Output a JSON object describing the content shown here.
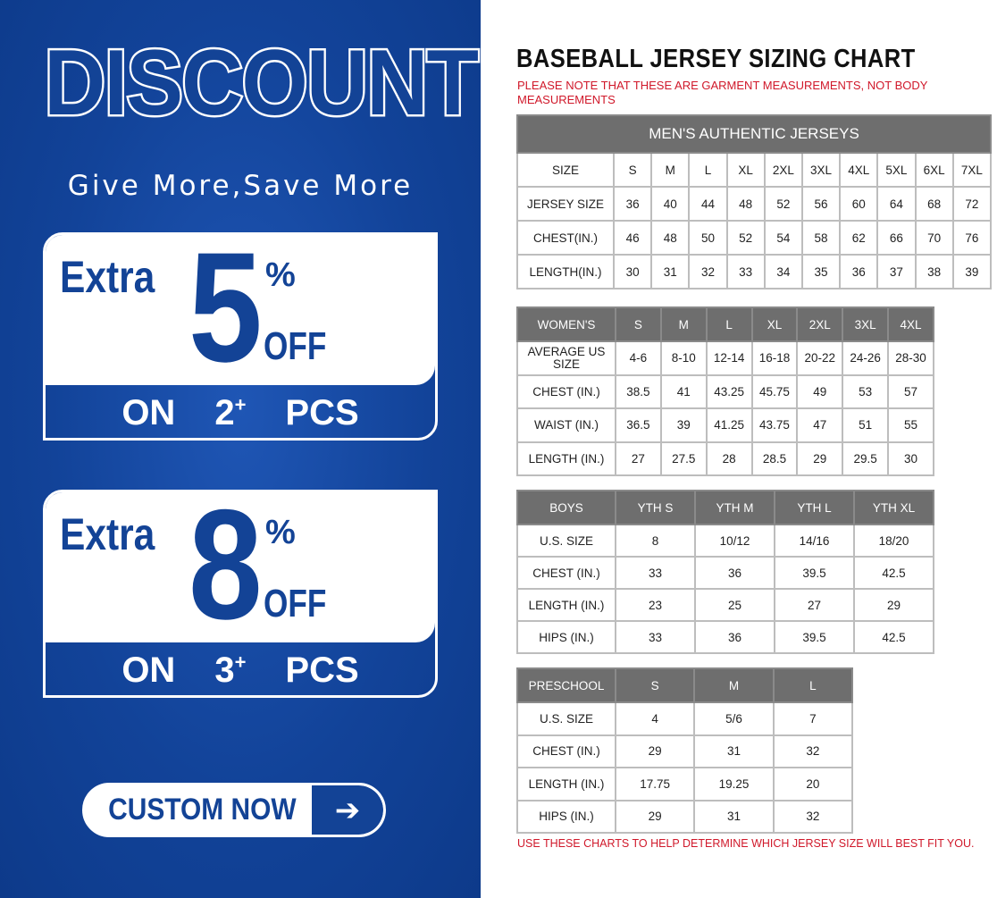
{
  "promo": {
    "headline": "DISCOUNT",
    "tagline": "Give More,Save More",
    "offers": [
      {
        "extra": "Extra",
        "amount": "5",
        "percent": "%",
        "off": "OFF",
        "on": "ON",
        "qty": "2",
        "plus": "+",
        "pcs": "PCS"
      },
      {
        "extra": "Extra",
        "amount": "8",
        "percent": "%",
        "off": "OFF",
        "on": "ON",
        "qty": "3",
        "plus": "+",
        "pcs": "PCS"
      }
    ],
    "cta_label": "CUSTOM NOW",
    "cta_icon": "arrow-right-icon",
    "brand_color": "#134396"
  },
  "chart": {
    "title": "BASEBALL JERSEY SIZING CHART",
    "note": "PLEASE NOTE THAT THESE ARE GARMENT MEASUREMENTS, NOT BODY MEASUREMENTS",
    "footer": "USE THESE CHARTS TO HELP DETERMINE WHICH JERSEY SIZE WILL BEST FIT YOU.",
    "note_color": "#d0182a",
    "header_color": "#6e6e6e"
  },
  "tables": {
    "men": {
      "caption": "MEN'S AUTHENTIC JERSEYS",
      "header": [
        "SIZE",
        "S",
        "M",
        "L",
        "XL",
        "2XL",
        "3XL",
        "4XL",
        "5XL",
        "6XL",
        "7XL"
      ],
      "header_dark": false,
      "rows": [
        [
          "JERSEY SIZE",
          "36",
          "40",
          "44",
          "48",
          "52",
          "56",
          "60",
          "64",
          "68",
          "72"
        ],
        [
          "CHEST(IN.)",
          "46",
          "48",
          "50",
          "52",
          "54",
          "58",
          "62",
          "66",
          "70",
          "76"
        ],
        [
          "LENGTH(IN.)",
          "30",
          "31",
          "32",
          "33",
          "34",
          "35",
          "36",
          "37",
          "38",
          "39"
        ]
      ]
    },
    "women": {
      "header": [
        "WOMEN'S",
        "S",
        "M",
        "L",
        "XL",
        "2XL",
        "3XL",
        "4XL"
      ],
      "header_dark": true,
      "rows": [
        [
          "AVERAGE US SIZE",
          "4-6",
          "8-10",
          "12-14",
          "16-18",
          "20-22",
          "24-26",
          "28-30"
        ],
        [
          "CHEST (IN.)",
          "38.5",
          "41",
          "43.25",
          "45.75",
          "49",
          "53",
          "57"
        ],
        [
          "WAIST (IN.)",
          "36.5",
          "39",
          "41.25",
          "43.75",
          "47",
          "51",
          "55"
        ],
        [
          "LENGTH (IN.)",
          "27",
          "27.5",
          "28",
          "28.5",
          "29",
          "29.5",
          "30"
        ]
      ]
    },
    "boys": {
      "header": [
        "BOYS",
        "YTH S",
        "YTH M",
        "YTH L",
        "YTH XL"
      ],
      "header_dark": true,
      "rows": [
        [
          "U.S. SIZE",
          "8",
          "10/12",
          "14/16",
          "18/20"
        ],
        [
          "CHEST (IN.)",
          "33",
          "36",
          "39.5",
          "42.5"
        ],
        [
          "LENGTH (IN.)",
          "23",
          "25",
          "27",
          "29"
        ],
        [
          "HIPS (IN.)",
          "33",
          "36",
          "39.5",
          "42.5"
        ]
      ]
    },
    "preschool": {
      "header": [
        "PRESCHOOL",
        "S",
        "M",
        "L"
      ],
      "header_dark": true,
      "rows": [
        [
          "U.S. SIZE",
          "4",
          "5/6",
          "7"
        ],
        [
          "CHEST (IN.)",
          "29",
          "31",
          "32"
        ],
        [
          "LENGTH (IN.)",
          "17.75",
          "19.25",
          "20"
        ],
        [
          "HIPS (IN.)",
          "29",
          "31",
          "32"
        ]
      ]
    }
  }
}
